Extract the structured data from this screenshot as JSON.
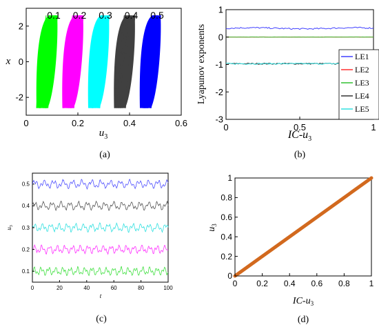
{
  "chart_data": [
    {
      "panel": "(a)",
      "type": "scatter",
      "xlabel": "u",
      "xlabel_sub": "3",
      "ylabel": "x",
      "xlim": [
        0,
        0.6
      ],
      "ylim": [
        -3,
        3
      ],
      "xticks": [
        "0",
        "0.2",
        "0.4",
        "0.6"
      ],
      "yticks": [
        "-2",
        "0",
        "2"
      ],
      "series": [
        {
          "name": "0.1",
          "color": "#00ff00",
          "u3": [
            0.04,
            0.12
          ]
        },
        {
          "name": "0.2",
          "color": "#ff00ff",
          "u3": [
            0.14,
            0.22
          ]
        },
        {
          "name": "0.3",
          "color": "#00ffff",
          "u3": [
            0.24,
            0.32
          ]
        },
        {
          "name": "0.4",
          "color": "#404040",
          "u3": [
            0.34,
            0.42
          ]
        },
        {
          "name": "0.5",
          "color": "#0000ff",
          "u3": [
            0.44,
            0.52
          ]
        }
      ],
      "x_range": [
        -2.6,
        2.6
      ]
    },
    {
      "panel": "(b)",
      "type": "line",
      "xlabel": "IC-u",
      "xlabel_sub": "3",
      "ylabel": "Lyapunov exponents",
      "xlim": [
        0,
        1
      ],
      "ylim": [
        -3,
        1
      ],
      "xticks": [
        "0",
        "0.5",
        "1"
      ],
      "yticks": [
        "1",
        "0",
        "-1",
        "-2",
        "-3"
      ],
      "legend_position": "bottom-right",
      "series": [
        {
          "name": "LE1",
          "color": "#4040ff",
          "mean": 0.32
        },
        {
          "name": "LE2",
          "color": "#ff3030",
          "mean": 0.0
        },
        {
          "name": "LE3",
          "color": "#30c030",
          "mean": 0.0
        },
        {
          "name": "LE4",
          "color": "#333333",
          "mean": -0.97
        },
        {
          "name": "LE5",
          "color": "#30e0e0",
          "mean": -0.97
        }
      ]
    },
    {
      "panel": "(c)",
      "type": "line",
      "xlabel": "t",
      "ylabel": "u",
      "ylabel_sub": "3",
      "xlim": [
        0,
        100
      ],
      "ylim": [
        0.05,
        0.55
      ],
      "xticks": [
        "0",
        "20",
        "40",
        "60",
        "80",
        "100"
      ],
      "yticks": [
        "0.5",
        "0.4",
        "0.3",
        "0.2",
        "0.1"
      ],
      "series": [
        {
          "name": "0.5",
          "color": "#5050ff",
          "base": 0.5
        },
        {
          "name": "0.4",
          "color": "#555555",
          "base": 0.4
        },
        {
          "name": "0.3",
          "color": "#30e0e0",
          "base": 0.3
        },
        {
          "name": "0.2",
          "color": "#ff30ff",
          "base": 0.2
        },
        {
          "name": "0.1",
          "color": "#40e040",
          "base": 0.1
        }
      ]
    },
    {
      "panel": "(d)",
      "type": "line",
      "xlabel": "IC-u",
      "xlabel_sub": "3",
      "ylabel": "u",
      "ylabel_sub": "3",
      "xlim": [
        0,
        1
      ],
      "ylim": [
        0,
        1
      ],
      "xticks": [
        "0",
        "0.2",
        "0.4",
        "0.6",
        "0.8",
        "1"
      ],
      "yticks": [
        "1",
        "0.8",
        "0.6",
        "0.4",
        "0.2",
        "0"
      ],
      "series": [
        {
          "name": "",
          "color": "#d2691e",
          "x": [
            0,
            1
          ],
          "y": [
            0,
            1
          ]
        }
      ]
    }
  ],
  "panel_labels": [
    "(a)",
    "(b)",
    "(c)",
    "(d)"
  ]
}
